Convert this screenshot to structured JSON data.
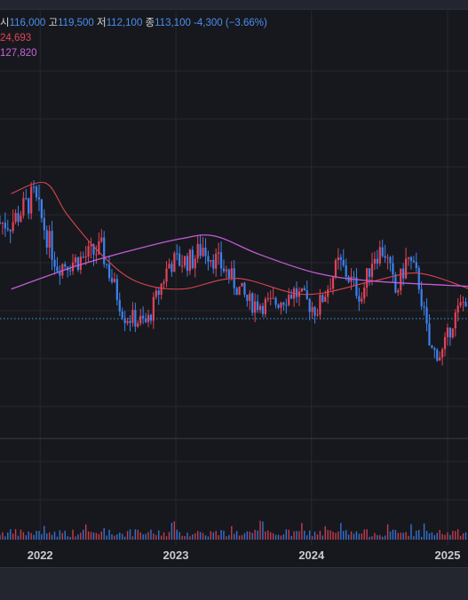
{
  "legend": {
    "open_label": "시",
    "open": "116,000",
    "high_label": "고",
    "high": "119,500",
    "low_label": "저",
    "low": "112,100",
    "close_label": "종",
    "close": "113,100",
    "change": "-4,300",
    "change_pct": "(−3.66%)",
    "ma1": "24,693",
    "ma2": "127,820"
  },
  "colors": {
    "up": "#e0445a",
    "down": "#3b82f0",
    "ma_red": "#d9434f",
    "ma_purple": "#c25bd6",
    "grid": "#262830",
    "background": "#17181d"
  },
  "chart_data": {
    "type": "candlestick",
    "x_tick_labels": [
      "2022",
      "2023",
      "2024",
      "2025"
    ],
    "last_close": 113100,
    "series_close_approx": [
      {
        "date": "2021-10",
        "close": 140000
      },
      {
        "date": "2021-12",
        "close": 150000
      },
      {
        "date": "2022-02",
        "close": 124000
      },
      {
        "date": "2022-04",
        "close": 126000
      },
      {
        "date": "2022-06",
        "close": 130000
      },
      {
        "date": "2022-08",
        "close": 105000
      },
      {
        "date": "2022-10",
        "close": 102000
      },
      {
        "date": "2022-12",
        "close": 125000
      },
      {
        "date": "2023-02",
        "close": 126000
      },
      {
        "date": "2023-03",
        "close": 131000
      },
      {
        "date": "2023-05",
        "close": 122000
      },
      {
        "date": "2023-07",
        "close": 110000
      },
      {
        "date": "2023-09",
        "close": 109000
      },
      {
        "date": "2023-11",
        "close": 114000
      },
      {
        "date": "2024-01",
        "close": 107000
      },
      {
        "date": "2024-03",
        "close": 125000
      },
      {
        "date": "2024-05",
        "close": 112000
      },
      {
        "date": "2024-06",
        "close": 128000
      },
      {
        "date": "2024-07",
        "close": 130000
      },
      {
        "date": "2024-08",
        "close": 113000
      },
      {
        "date": "2024-09",
        "close": 127000
      },
      {
        "date": "2024-10",
        "close": 118000
      },
      {
        "date": "2024-11",
        "close": 92000
      },
      {
        "date": "2024-12",
        "close": 90000
      },
      {
        "date": "2025-01",
        "close": 103000
      },
      {
        "date": "2025-02",
        "close": 113100
      }
    ],
    "ma_short_approx": [
      {
        "date": "2021-10",
        "value": 151000
      },
      {
        "date": "2022-01",
        "value": 155000
      },
      {
        "date": "2022-03",
        "value": 143000
      },
      {
        "date": "2022-06",
        "value": 128000
      },
      {
        "date": "2022-09",
        "value": 118000
      },
      {
        "date": "2023-01",
        "value": 115000
      },
      {
        "date": "2023-06",
        "value": 119000
      },
      {
        "date": "2023-12",
        "value": 113000
      },
      {
        "date": "2024-06",
        "value": 118000
      },
      {
        "date": "2024-10",
        "value": 121000
      },
      {
        "date": "2025-02",
        "value": 115000
      }
    ],
    "ma_long_approx": [
      {
        "date": "2021-10",
        "value": 115000
      },
      {
        "date": "2022-04",
        "value": 124000
      },
      {
        "date": "2022-09",
        "value": 130000
      },
      {
        "date": "2023-01",
        "value": 134000
      },
      {
        "date": "2023-04",
        "value": 135000
      },
      {
        "date": "2023-08",
        "value": 128000
      },
      {
        "date": "2024-01",
        "value": 121000
      },
      {
        "date": "2024-06",
        "value": 118000
      },
      {
        "date": "2025-02",
        "value": 116000
      }
    ]
  }
}
